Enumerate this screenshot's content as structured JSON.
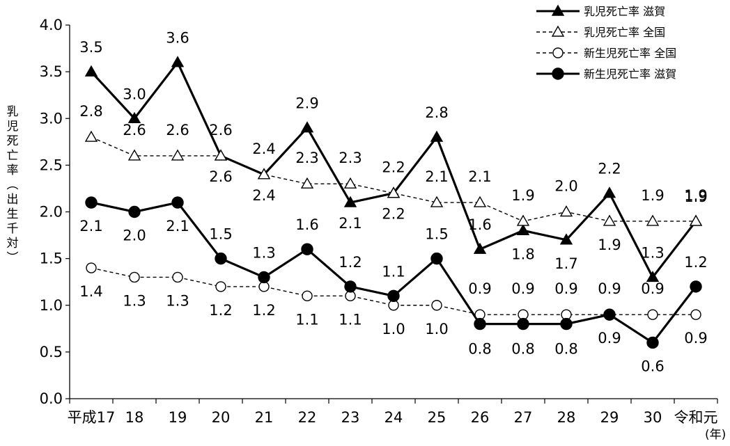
{
  "chart_data": {
    "type": "line",
    "ylabel": "乳児死亡率（出生千対）",
    "xunit": "(年)",
    "ylim": [
      0,
      4.0
    ],
    "yticks": [
      "0.0",
      "0.5",
      "1.0",
      "1.5",
      "2.0",
      "2.5",
      "3.0",
      "3.5",
      "4.0"
    ],
    "grid": false,
    "legend_position": "top-right",
    "categories": [
      "平成17",
      "18",
      "19",
      "20",
      "21",
      "22",
      "23",
      "24",
      "25",
      "26",
      "27",
      "28",
      "29",
      "30",
      "令和元"
    ],
    "series": [
      {
        "name": "乳児死亡率 滋賀",
        "style": "solid",
        "marker": "triangle-filled",
        "values": [
          3.5,
          3.0,
          3.6,
          2.6,
          2.4,
          2.9,
          2.1,
          2.2,
          2.8,
          1.6,
          1.8,
          1.7,
          2.2,
          1.3,
          1.9
        ],
        "labels": [
          "3.5",
          "3.0",
          "3.6",
          "2.6",
          "2.4",
          "2.9",
          "2.1",
          "2.2",
          "2.8",
          "1.6",
          "1.8",
          "1.7",
          "2.2",
          "1.3",
          "1.9"
        ]
      },
      {
        "name": "乳児死亡率 全国",
        "style": "dashed",
        "marker": "triangle-open",
        "values": [
          2.8,
          2.6,
          2.6,
          2.6,
          2.4,
          2.3,
          2.3,
          2.2,
          2.1,
          2.1,
          1.9,
          2.0,
          1.9,
          1.9,
          1.9
        ],
        "labels": [
          "2.8",
          "2.6",
          "2.6",
          "2.6",
          "2.4",
          "2.3",
          "2.3",
          "2.2",
          "2.1",
          "2.1",
          "1.9",
          "2.0",
          "1.9",
          "1.9",
          "1.9"
        ]
      },
      {
        "name": "新生児死亡率 全国",
        "style": "dashed",
        "marker": "circle-open",
        "values": [
          1.4,
          1.3,
          1.3,
          1.2,
          1.2,
          1.1,
          1.1,
          1.0,
          1.0,
          0.9,
          0.9,
          0.9,
          0.9,
          0.9,
          0.9
        ],
        "labels": [
          "1.4",
          "1.3",
          "1.3",
          "1.2",
          "1.2",
          "1.1",
          "1.1",
          "1.0",
          "1.0",
          "0.9",
          "0.9",
          "0.9",
          "0.9",
          "0.9",
          "0.9"
        ]
      },
      {
        "name": "新生児死亡率 滋賀",
        "style": "solid",
        "marker": "circle-filled",
        "values": [
          2.1,
          2.0,
          2.1,
          1.5,
          1.3,
          1.6,
          1.2,
          1.1,
          1.5,
          0.8,
          0.8,
          0.8,
          0.9,
          0.6,
          1.2
        ],
        "labels": [
          "2.1",
          "2.0",
          "2.1",
          "1.5",
          "1.3",
          "1.6",
          "1.2",
          "1.1",
          "1.5",
          "0.8",
          "0.8",
          "0.8",
          "0.9",
          "0.6",
          "1.2"
        ]
      }
    ]
  }
}
